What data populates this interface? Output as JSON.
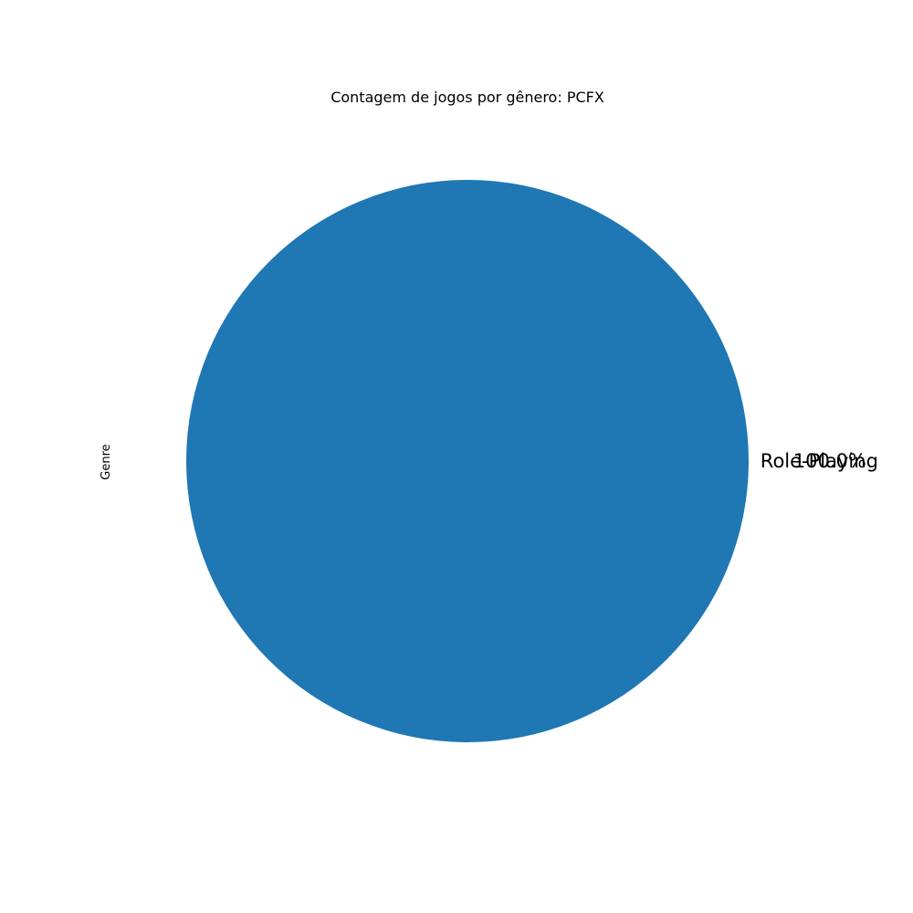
{
  "chart_data": {
    "type": "pie",
    "title": "Contagem de jogos por gênero: PCFX",
    "ylabel": "Genre",
    "slices": [
      {
        "label": "Role-Playing",
        "value": 1,
        "percent_label": "100.0%",
        "color": "#1f77b4"
      }
    ],
    "legend": "none"
  }
}
